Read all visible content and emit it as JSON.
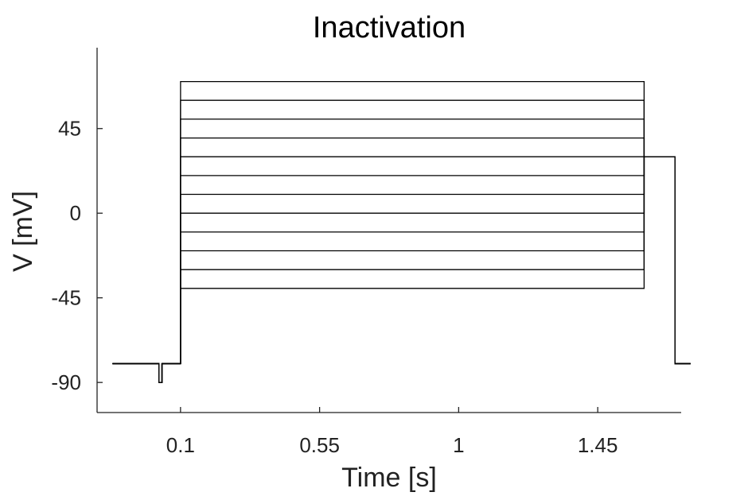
{
  "chart_data": {
    "type": "line",
    "title": "Inactivation",
    "xlabel": "Time [s]",
    "ylabel": "V [mV]",
    "xlim": [
      -0.17,
      1.72
    ],
    "ylim": [
      -106,
      88
    ],
    "xticks": [
      0.1,
      0.55,
      1,
      1.45
    ],
    "xtick_labels": [
      "0.1",
      "0.55",
      "1",
      "1.45"
    ],
    "yticks": [
      -90,
      -45,
      0,
      45
    ],
    "ytick_labels": [
      "-90",
      "-45",
      "0",
      "45"
    ],
    "grid": false,
    "legend": "none",
    "protocol": {
      "holding_mV": -80,
      "pre_pulse": {
        "start_s": 0.03,
        "end_s": 0.04,
        "value_mV": -90
      },
      "conditioning": {
        "start_s": 0.1,
        "end_s": 1.6,
        "levels_mV": [
          -40,
          -30,
          -20,
          -10,
          0,
          10,
          20,
          30,
          40,
          50,
          60,
          70
        ]
      },
      "test_pulse": {
        "start_s": 1.6,
        "end_s": 1.7,
        "value_mV": 30
      }
    },
    "series_color": "#000000"
  }
}
